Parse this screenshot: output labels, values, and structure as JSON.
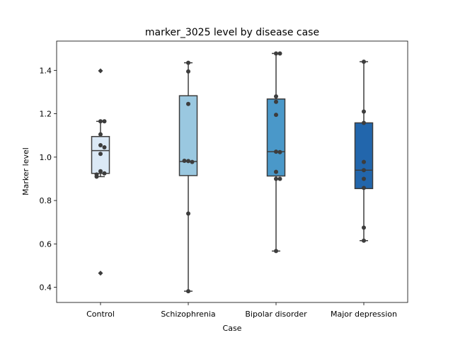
{
  "chart_data": {
    "type": "box",
    "title": "marker_3025 level by disease case",
    "xlabel": "Case",
    "ylabel": "Marker level",
    "ylim": [
      0.33,
      1.535
    ],
    "yticks": [
      0.4,
      0.6,
      0.8,
      1.0,
      1.2,
      1.4
    ],
    "ytick_labels": [
      "0.4",
      "0.6",
      "0.8",
      "1.0",
      "1.2",
      "1.4"
    ],
    "grid": false,
    "legend": "none",
    "categories": [
      "Control",
      "Schizophrenia",
      "Bipolar disorder",
      "Major depression"
    ],
    "boxes": [
      {
        "q1": 0.925,
        "median": 1.03,
        "q3": 1.095,
        "whisker_low": 0.91,
        "whisker_high": 1.165,
        "outliers": [
          0.465,
          1.398
        ],
        "color": "#dbe9f6"
      },
      {
        "q1": 0.915,
        "median": 0.98,
        "q3": 1.283,
        "whisker_low": 0.382,
        "whisker_high": 1.435,
        "outliers": [],
        "color": "#9ac8e0"
      },
      {
        "q1": 0.913,
        "median": 1.025,
        "q3": 1.268,
        "whisker_low": 0.567,
        "whisker_high": 1.478,
        "outliers": [],
        "color": "#4a98c9"
      },
      {
        "q1": 0.855,
        "median": 0.94,
        "q3": 1.158,
        "whisker_low": 0.615,
        "whisker_high": 1.44,
        "outliers": [],
        "color": "#2266ac"
      }
    ],
    "points": [
      [
        1.165,
        1.165,
        1.105,
        1.055,
        1.045,
        1.015,
        0.935,
        0.925,
        0.92,
        0.91
      ],
      [
        1.435,
        1.395,
        1.245,
        0.982,
        0.978,
        0.983,
        0.74,
        0.382
      ],
      [
        1.478,
        1.478,
        1.28,
        1.255,
        1.195,
        1.025,
        1.023,
        0.932,
        0.9,
        0.9,
        0.567
      ],
      [
        1.44,
        1.21,
        1.158,
        0.978,
        0.94,
        0.9,
        0.858,
        0.675,
        0.615
      ]
    ],
    "style": {
      "line_color": "#3d3d3d",
      "point_color": "#3d3d3d"
    }
  }
}
